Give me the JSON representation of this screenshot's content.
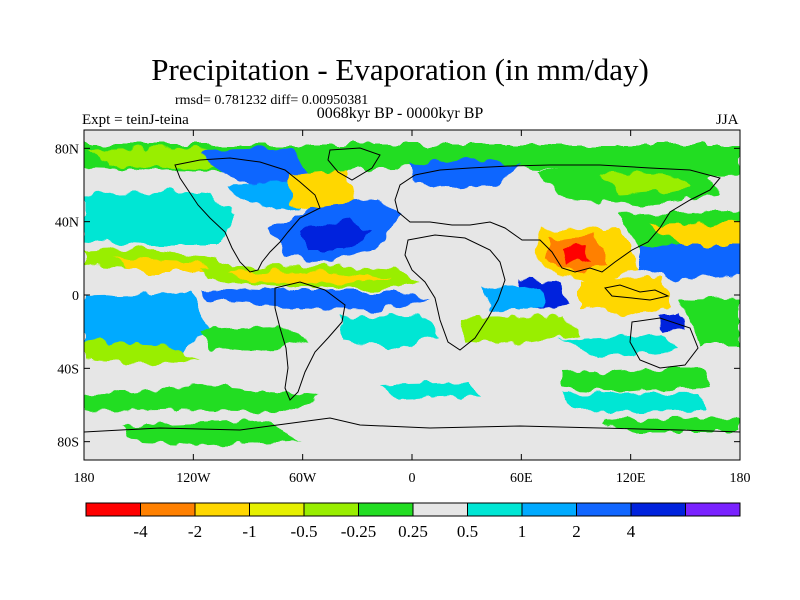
{
  "figure": {
    "title": "Precipitation - Evaporation (in mm/day)",
    "stats": "rmsd= 0.781232 diff= 0.00950381",
    "period": "0068kyr BP - 0000kyr BP",
    "experiment": "Expt = teinJ-teina",
    "season": "JJA"
  },
  "axes": {
    "lat_ticks": [
      {
        "value": 80,
        "label": "80N"
      },
      {
        "value": 40,
        "label": "40N"
      },
      {
        "value": 0,
        "label": "0"
      },
      {
        "value": -40,
        "label": "40S"
      },
      {
        "value": -80,
        "label": "80S"
      }
    ],
    "lon_ticks": [
      {
        "value": -180,
        "label": "180"
      },
      {
        "value": -120,
        "label": "120W"
      },
      {
        "value": -60,
        "label": "60W"
      },
      {
        "value": 0,
        "label": "0"
      },
      {
        "value": 60,
        "label": "60E"
      },
      {
        "value": 120,
        "label": "120E"
      },
      {
        "value": 180,
        "label": "180"
      }
    ]
  },
  "colorbar": {
    "colors": [
      "#ff0000",
      "#ff8000",
      "#ffd700",
      "#e6f000",
      "#99ee00",
      "#22dd22",
      "#e6e6e6",
      "#00e6d4",
      "#00aaff",
      "#1166ff",
      "#0022dd",
      "#7a22ff"
    ],
    "labels": [
      "-4",
      "-2",
      "-1",
      "-0.5",
      "-0.25",
      "0.25",
      "0.5",
      "1",
      "2",
      "4"
    ]
  },
  "colors": {
    "background_field": "#e6e6e6",
    "coastline": "#000000"
  }
}
